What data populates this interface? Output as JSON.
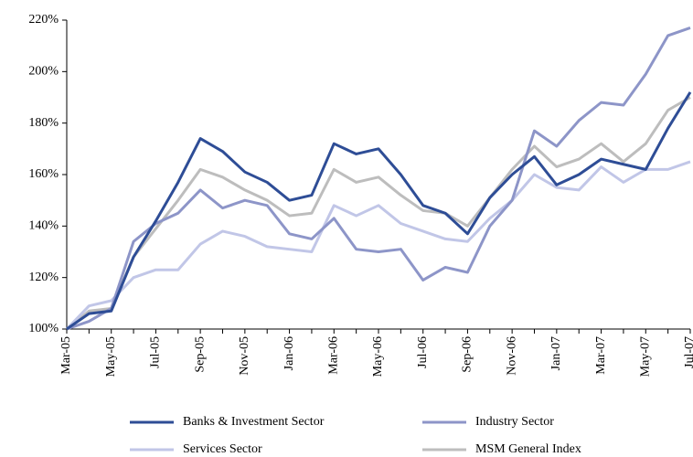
{
  "chart_data": {
    "type": "line",
    "categories": [
      "Mar-05",
      null,
      "May-05",
      null,
      "Jul-05",
      null,
      "Sep-05",
      null,
      "Nov-05",
      null,
      "Jan-06",
      null,
      "Mar-06",
      null,
      "May-06",
      null,
      "Jul-06",
      null,
      "Sep-06",
      null,
      "Nov-06",
      null,
      "Jan-07",
      null,
      "Mar-07",
      null,
      "May-07",
      null,
      "Jul-07"
    ],
    "series": [
      {
        "name": "Banks & Investment Sector",
        "color": "#2e4d96",
        "values": [
          100,
          106,
          107,
          128,
          142,
          157,
          174,
          169,
          161,
          157,
          150,
          152,
          172,
          168,
          170,
          160,
          148,
          145,
          137,
          151,
          160,
          167,
          156,
          160,
          166,
          164,
          162,
          178,
          192
        ]
      },
      {
        "name": "Industry Sector",
        "color": "#8d95c8",
        "values": [
          100,
          103,
          108,
          134,
          141,
          145,
          154,
          147,
          150,
          148,
          137,
          135,
          143,
          131,
          130,
          131,
          119,
          124,
          122,
          140,
          150,
          177,
          171,
          181,
          188,
          187,
          199,
          214,
          217
        ]
      },
      {
        "name": "Services Sector",
        "color": "#c1c6e7",
        "values": [
          100,
          109,
          111,
          120,
          123,
          123,
          133,
          138,
          136,
          132,
          131,
          130,
          148,
          144,
          148,
          141,
          138,
          135,
          134,
          143,
          150,
          160,
          155,
          154,
          163,
          157,
          162,
          162,
          165
        ]
      },
      {
        "name": "MSM General Index",
        "color": "#bdbdbd",
        "values": [
          100,
          107,
          108,
          128,
          139,
          150,
          162,
          159,
          154,
          150,
          144,
          145,
          162,
          157,
          159,
          152,
          146,
          145,
          140,
          151,
          162,
          171,
          163,
          166,
          172,
          165,
          172,
          185,
          190
        ]
      }
    ],
    "ylim": [
      100,
      220
    ],
    "yticks": [
      {
        "value": 100,
        "label": "100%"
      },
      {
        "value": 120,
        "label": "120%"
      },
      {
        "value": 140,
        "label": "140%"
      },
      {
        "value": 160,
        "label": "160%"
      },
      {
        "value": 180,
        "label": "180%"
      },
      {
        "value": 200,
        "label": "200%"
      },
      {
        "value": 220,
        "label": "220%"
      }
    ],
    "grid": false
  }
}
